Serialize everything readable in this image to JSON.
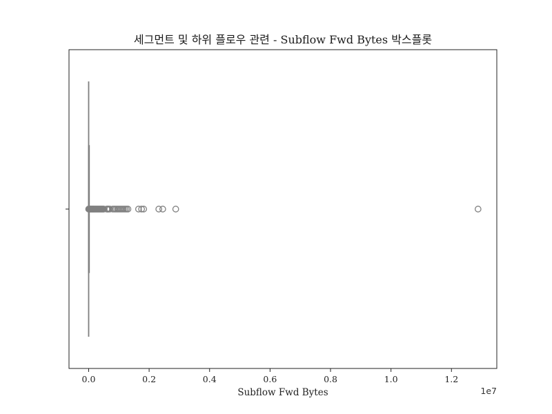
{
  "chart_data": {
    "type": "boxplot",
    "title": "세그먼트 및 하위 플로우 관련 - Subflow Fwd Bytes 박스플롯",
    "xlabel": "Subflow Fwd Bytes",
    "ylabel": "",
    "x_offset_label": "1e7",
    "xlim": [
      -650000,
      13500000
    ],
    "x_ticks": [
      0,
      2000000,
      4000000,
      6000000,
      8000000,
      10000000,
      12000000
    ],
    "x_tick_labels": [
      "0.0",
      "0.2",
      "0.4",
      "0.6",
      "0.8",
      "1.0",
      "1.2"
    ],
    "grid": false,
    "orientation": "horizontal",
    "color": "#808080",
    "box": {
      "min": 0,
      "q1": 0,
      "median": 0,
      "q3": 20,
      "max": 50
    },
    "outliers": [
      0,
      15000,
      30000,
      45000,
      60000,
      75000,
      90000,
      105000,
      120000,
      135000,
      150000,
      165000,
      180000,
      200000,
      220000,
      240000,
      260000,
      280000,
      300000,
      320000,
      340000,
      360000,
      380000,
      400000,
      420000,
      440000,
      460000,
      480000,
      500000,
      600000,
      620000,
      640000,
      660000,
      700000,
      800000,
      850000,
      900000,
      950000,
      1000000,
      1050000,
      1100000,
      1150000,
      1200000,
      1250000,
      1300000,
      1650000,
      1750000,
      1820000,
      2320000,
      2450000,
      2880000,
      12880000
    ]
  }
}
